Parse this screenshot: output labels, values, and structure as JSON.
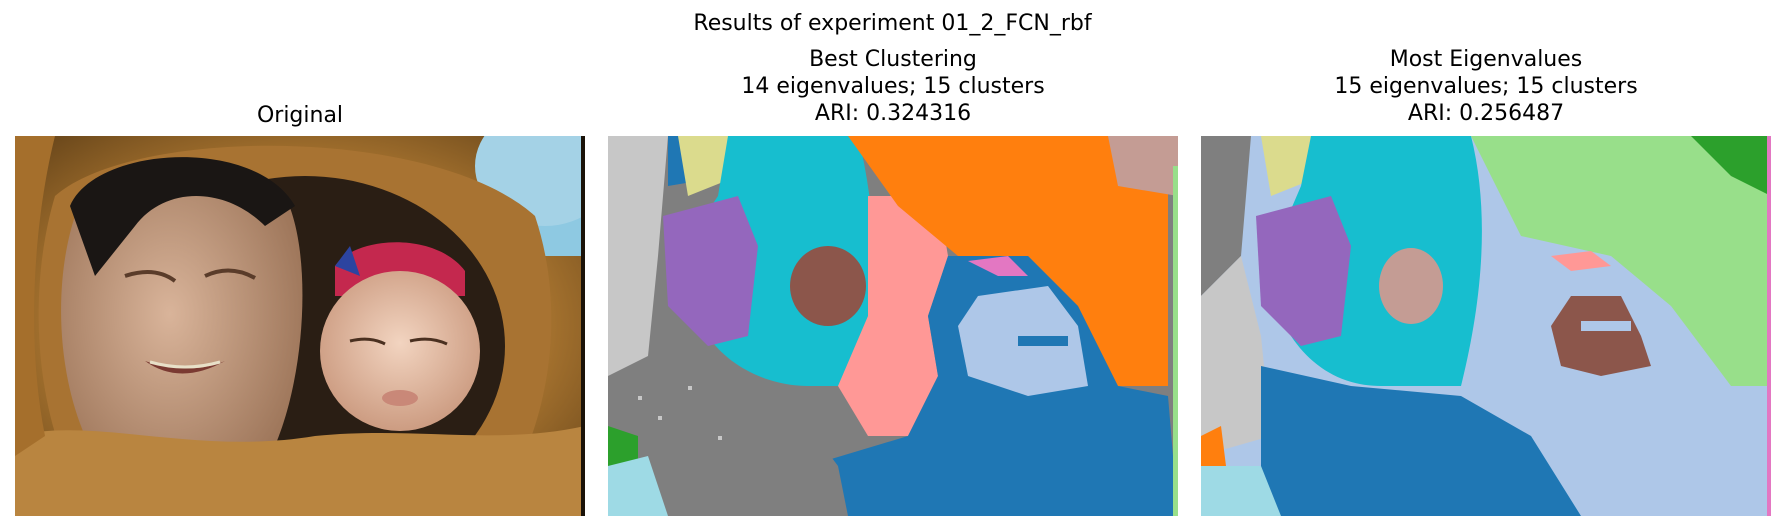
{
  "suptitle": "Results of experiment 01_2_FCN_rbf",
  "panels": [
    {
      "id": "original",
      "title_lines": [
        "Original"
      ],
      "image": "photo-of-elder-and-child-in-fur-hood"
    },
    {
      "id": "best",
      "title_lines": [
        "Best Clustering",
        "14 eigenvalues; 15 clusters",
        "ARI: 0.324316"
      ],
      "image": "cluster-segmentation-map"
    },
    {
      "id": "most",
      "title_lines": [
        "Most Eigenvalues",
        "15 eigenvalues; 15 clusters",
        "ARI: 0.256487"
      ],
      "image": "cluster-segmentation-map"
    }
  ],
  "colors": {
    "blue": "#1f77b4",
    "lightblue": "#aec7e8",
    "orange": "#ff7f0e",
    "green": "#2ca02c",
    "lightgreen": "#98df8a",
    "pink": "#ff9896",
    "purple": "#9467bd",
    "brown": "#8c564b",
    "tan": "#c49c94",
    "magenta": "#e377c2",
    "gray": "#7f7f7f",
    "lightgray": "#c7c7c7",
    "olive": "#dbdb8d",
    "cyan": "#17becf",
    "paleblue": "#9edae5"
  }
}
